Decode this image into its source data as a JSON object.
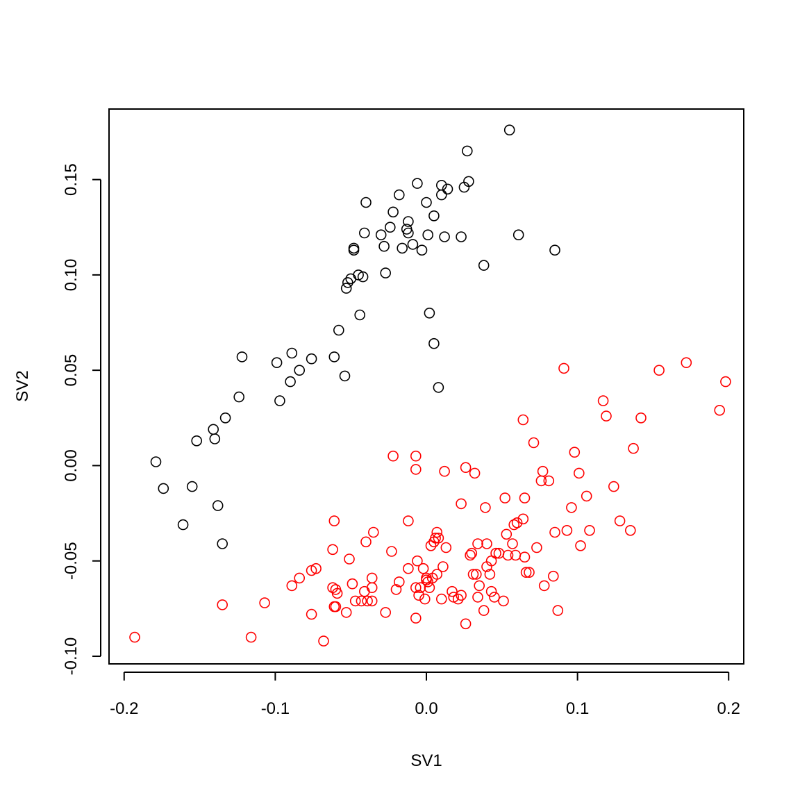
{
  "chart_data": {
    "type": "scatter",
    "title": "",
    "xlabel": "SV1",
    "ylabel": "SV2",
    "xlim": [
      -0.21,
      0.21
    ],
    "ylim": [
      -0.104,
      0.187
    ],
    "x_ticks": [
      -0.2,
      -0.1,
      0.0,
      0.1,
      0.2
    ],
    "x_tick_labels": [
      "-0.2",
      "-0.1",
      "0.0",
      "0.1",
      "0.2"
    ],
    "y_ticks": [
      -0.1,
      -0.05,
      0.0,
      0.05,
      0.1,
      0.15
    ],
    "y_tick_labels": [
      "-0.10",
      "-0.05",
      "0.00",
      "0.05",
      "0.10",
      "0.15"
    ],
    "grid": false,
    "legend": "none",
    "series": [
      {
        "color": "#000000",
        "points": [
          [
            -0.179,
            0.002
          ],
          [
            -0.174,
            -0.012
          ],
          [
            -0.155,
            -0.011
          ],
          [
            -0.161,
            -0.031
          ],
          [
            -0.152,
            0.013
          ],
          [
            -0.141,
            0.019
          ],
          [
            -0.14,
            0.014
          ],
          [
            -0.138,
            -0.021
          ],
          [
            -0.133,
            0.025
          ],
          [
            -0.135,
            -0.041
          ],
          [
            -0.124,
            0.036
          ],
          [
            -0.122,
            0.057
          ],
          [
            -0.099,
            0.054
          ],
          [
            -0.097,
            0.034
          ],
          [
            -0.09,
            0.044
          ],
          [
            -0.089,
            0.059
          ],
          [
            -0.084,
            0.05
          ],
          [
            -0.076,
            0.056
          ],
          [
            -0.061,
            0.057
          ],
          [
            -0.058,
            0.071
          ],
          [
            -0.054,
            0.047
          ],
          [
            -0.053,
            0.093
          ],
          [
            -0.052,
            0.096
          ],
          [
            -0.05,
            0.098
          ],
          [
            -0.048,
            0.114
          ],
          [
            -0.048,
            0.113
          ],
          [
            -0.045,
            0.1
          ],
          [
            -0.044,
            0.079
          ],
          [
            -0.042,
            0.099
          ],
          [
            -0.041,
            0.122
          ],
          [
            -0.04,
            0.138
          ],
          [
            -0.03,
            0.121
          ],
          [
            -0.028,
            0.115
          ],
          [
            -0.027,
            0.101
          ],
          [
            -0.024,
            0.125
          ],
          [
            -0.022,
            0.133
          ],
          [
            -0.018,
            0.142
          ],
          [
            -0.016,
            0.114
          ],
          [
            -0.013,
            0.124
          ],
          [
            -0.012,
            0.128
          ],
          [
            -0.012,
            0.122
          ],
          [
            -0.009,
            0.116
          ],
          [
            -0.006,
            0.148
          ],
          [
            -0.003,
            0.113
          ],
          [
            0.0,
            0.138
          ],
          [
            0.001,
            0.121
          ],
          [
            0.002,
            0.08
          ],
          [
            0.005,
            0.131
          ],
          [
            0.005,
            0.064
          ],
          [
            0.008,
            0.041
          ],
          [
            0.01,
            0.147
          ],
          [
            0.01,
            0.142
          ],
          [
            0.012,
            0.12
          ],
          [
            0.014,
            0.145
          ],
          [
            0.023,
            0.12
          ],
          [
            0.025,
            0.146
          ],
          [
            0.027,
            0.165
          ],
          [
            0.028,
            0.149
          ],
          [
            0.038,
            0.105
          ],
          [
            0.055,
            0.176
          ],
          [
            0.061,
            0.121
          ],
          [
            0.085,
            0.113
          ]
        ]
      },
      {
        "color": "#ff0000",
        "points": [
          [
            -0.193,
            -0.09
          ],
          [
            -0.135,
            -0.073
          ],
          [
            -0.116,
            -0.09
          ],
          [
            -0.107,
            -0.072
          ],
          [
            -0.089,
            -0.063
          ],
          [
            -0.084,
            -0.059
          ],
          [
            -0.076,
            -0.055
          ],
          [
            -0.073,
            -0.054
          ],
          [
            -0.076,
            -0.078
          ],
          [
            -0.068,
            -0.092
          ],
          [
            -0.062,
            -0.044
          ],
          [
            -0.061,
            -0.029
          ],
          [
            -0.062,
            -0.064
          ],
          [
            -0.06,
            -0.065
          ],
          [
            -0.059,
            -0.067
          ],
          [
            -0.061,
            -0.074
          ],
          [
            -0.06,
            -0.074
          ],
          [
            -0.053,
            -0.077
          ],
          [
            -0.051,
            -0.049
          ],
          [
            -0.049,
            -0.062
          ],
          [
            -0.047,
            -0.071
          ],
          [
            -0.043,
            -0.071
          ],
          [
            -0.041,
            -0.066
          ],
          [
            -0.04,
            -0.04
          ],
          [
            -0.039,
            -0.071
          ],
          [
            -0.036,
            -0.059
          ],
          [
            -0.036,
            -0.064
          ],
          [
            -0.036,
            -0.071
          ],
          [
            -0.035,
            -0.035
          ],
          [
            -0.027,
            -0.077
          ],
          [
            -0.023,
            -0.045
          ],
          [
            -0.022,
            0.005
          ],
          [
            -0.02,
            -0.065
          ],
          [
            -0.018,
            -0.061
          ],
          [
            -0.012,
            -0.029
          ],
          [
            -0.012,
            -0.054
          ],
          [
            -0.007,
            0.005
          ],
          [
            -0.007,
            -0.002
          ],
          [
            -0.006,
            -0.05
          ],
          [
            -0.007,
            -0.064
          ],
          [
            -0.007,
            -0.08
          ],
          [
            -0.005,
            -0.068
          ],
          [
            -0.004,
            -0.064
          ],
          [
            -0.002,
            -0.054
          ],
          [
            -0.001,
            -0.07
          ],
          [
            0.0,
            -0.06
          ],
          [
            0.0,
            -0.059
          ],
          [
            0.001,
            -0.061
          ],
          [
            0.002,
            -0.064
          ],
          [
            0.003,
            -0.042
          ],
          [
            0.004,
            -0.059
          ],
          [
            0.005,
            -0.04
          ],
          [
            0.006,
            -0.038
          ],
          [
            0.007,
            -0.035
          ],
          [
            0.008,
            -0.038
          ],
          [
            0.007,
            -0.057
          ],
          [
            0.01,
            -0.07
          ],
          [
            0.011,
            -0.053
          ],
          [
            0.012,
            -0.003
          ],
          [
            0.013,
            -0.043
          ],
          [
            0.017,
            -0.066
          ],
          [
            0.018,
            -0.069
          ],
          [
            0.021,
            -0.07
          ],
          [
            0.023,
            -0.068
          ],
          [
            0.023,
            -0.02
          ],
          [
            0.026,
            -0.001
          ],
          [
            0.026,
            -0.083
          ],
          [
            0.029,
            -0.047
          ],
          [
            0.03,
            -0.046
          ],
          [
            0.031,
            -0.057
          ],
          [
            0.032,
            -0.004
          ],
          [
            0.033,
            -0.057
          ],
          [
            0.034,
            -0.041
          ],
          [
            0.034,
            -0.069
          ],
          [
            0.035,
            -0.063
          ],
          [
            0.038,
            -0.076
          ],
          [
            0.039,
            -0.022
          ],
          [
            0.04,
            -0.041
          ],
          [
            0.04,
            -0.053
          ],
          [
            0.042,
            -0.057
          ],
          [
            0.043,
            -0.066
          ],
          [
            0.043,
            -0.05
          ],
          [
            0.045,
            -0.069
          ],
          [
            0.046,
            -0.046
          ],
          [
            0.048,
            -0.046
          ],
          [
            0.051,
            -0.071
          ],
          [
            0.052,
            -0.017
          ],
          [
            0.053,
            -0.036
          ],
          [
            0.054,
            -0.047
          ],
          [
            0.057,
            -0.041
          ],
          [
            0.058,
            -0.031
          ],
          [
            0.059,
            -0.047
          ],
          [
            0.06,
            -0.03
          ],
          [
            0.064,
            -0.028
          ],
          [
            0.064,
            0.024
          ],
          [
            0.065,
            -0.017
          ],
          [
            0.065,
            -0.048
          ],
          [
            0.066,
            -0.056
          ],
          [
            0.068,
            -0.056
          ],
          [
            0.071,
            0.012
          ],
          [
            0.073,
            -0.043
          ],
          [
            0.076,
            -0.008
          ],
          [
            0.077,
            -0.003
          ],
          [
            0.078,
            -0.063
          ],
          [
            0.081,
            -0.008
          ],
          [
            0.084,
            -0.058
          ],
          [
            0.085,
            -0.035
          ],
          [
            0.087,
            -0.076
          ],
          [
            0.091,
            0.051
          ],
          [
            0.093,
            -0.034
          ],
          [
            0.096,
            -0.022
          ],
          [
            0.098,
            0.007
          ],
          [
            0.101,
            -0.004
          ],
          [
            0.102,
            -0.042
          ],
          [
            0.106,
            -0.016
          ],
          [
            0.108,
            -0.034
          ],
          [
            0.117,
            0.034
          ],
          [
            0.119,
            0.026
          ],
          [
            0.124,
            -0.011
          ],
          [
            0.128,
            -0.029
          ],
          [
            0.135,
            -0.034
          ],
          [
            0.137,
            0.009
          ],
          [
            0.142,
            0.025
          ],
          [
            0.154,
            0.05
          ],
          [
            0.172,
            0.054
          ],
          [
            0.194,
            0.029
          ],
          [
            0.198,
            0.044
          ]
        ]
      }
    ]
  }
}
